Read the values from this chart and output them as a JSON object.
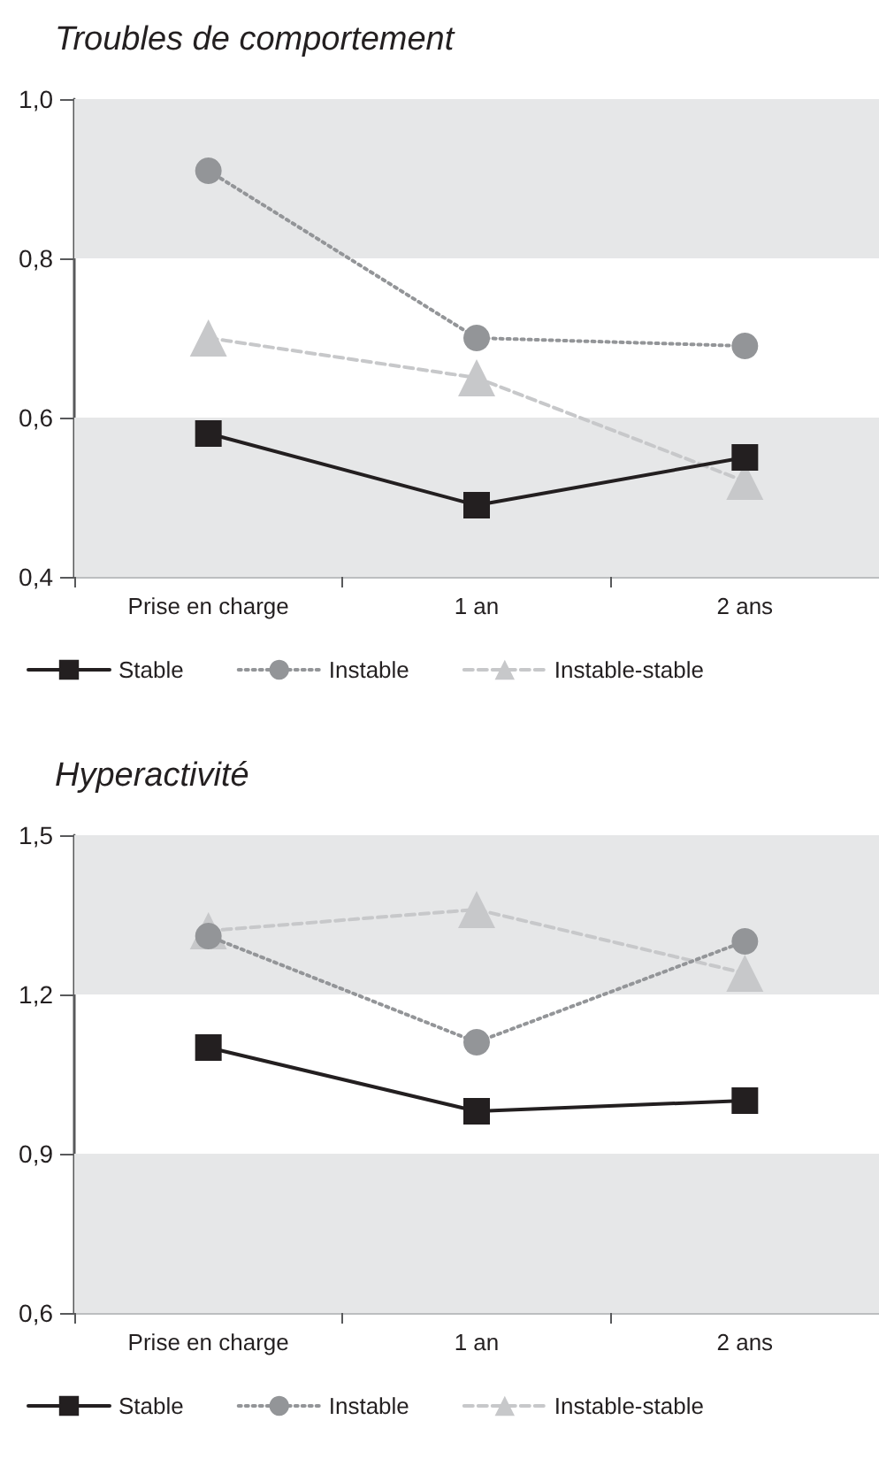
{
  "chart_data": [
    {
      "type": "line",
      "title": "Troubles de comportement",
      "categories": [
        "Prise en charge",
        "1 an",
        "2 ans"
      ],
      "series": [
        {
          "name": "Stable",
          "color": "#231f20",
          "marker": "square",
          "line_style": "solid",
          "values": [
            0.58,
            0.49,
            0.55
          ]
        },
        {
          "name": "Instable",
          "color": "#939598",
          "marker": "circle",
          "line_style": "dotted",
          "values": [
            0.91,
            0.7,
            0.69
          ]
        },
        {
          "name": "Instable-stable",
          "color": "#c7c8ca",
          "marker": "triangle",
          "line_style": "dashed",
          "values": [
            0.7,
            0.65,
            0.52
          ]
        }
      ],
      "ylim": [
        0.4,
        1.0
      ],
      "yticks": [
        {
          "value": 0.4,
          "label": "0,4"
        },
        {
          "value": 0.6,
          "label": "0,6"
        },
        {
          "value": 0.8,
          "label": "0,8"
        },
        {
          "value": 1.0,
          "label": "1,0"
        }
      ],
      "bands": [
        {
          "axis": "y",
          "from": 0.4,
          "to": 0.6,
          "color": "#e6e7e8"
        },
        {
          "axis": "y",
          "from": 0.8,
          "to": 1.0,
          "color": "#e6e7e8"
        }
      ],
      "grid": false,
      "legend": "bottom"
    },
    {
      "type": "line",
      "title": "Hyperactivité",
      "categories": [
        "Prise en charge",
        "1 an",
        "2 ans"
      ],
      "series": [
        {
          "name": "Stable",
          "color": "#231f20",
          "marker": "square",
          "line_style": "solid",
          "values": [
            1.1,
            0.98,
            1.0
          ]
        },
        {
          "name": "Instable",
          "color": "#939598",
          "marker": "circle",
          "line_style": "dotted",
          "values": [
            1.31,
            1.11,
            1.3
          ]
        },
        {
          "name": "Instable-stable",
          "color": "#c7c8ca",
          "marker": "triangle",
          "line_style": "dashed",
          "values": [
            1.32,
            1.36,
            1.24
          ]
        }
      ],
      "ylim": [
        0.6,
        1.5
      ],
      "yticks": [
        {
          "value": 0.6,
          "label": "0,6"
        },
        {
          "value": 0.9,
          "label": "0,9"
        },
        {
          "value": 1.2,
          "label": "1,2"
        },
        {
          "value": 1.5,
          "label": "1,5"
        }
      ],
      "bands": [
        {
          "axis": "y",
          "from": 0.6,
          "to": 0.9,
          "color": "#e6e7e8"
        },
        {
          "axis": "y",
          "from": 1.2,
          "to": 1.5,
          "color": "#e6e7e8"
        }
      ],
      "grid": false,
      "legend": "bottom"
    }
  ]
}
